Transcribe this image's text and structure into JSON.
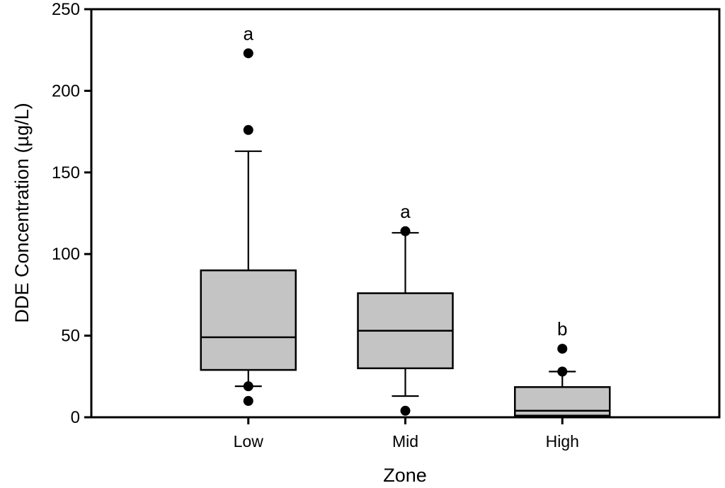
{
  "chart_data": {
    "type": "boxplot",
    "title": "",
    "xlabel": "Zone",
    "ylabel": "DDE Concentration (µg/L)",
    "ylim": [
      0,
      250
    ],
    "yticks": [
      0,
      50,
      100,
      150,
      200,
      250
    ],
    "categories": [
      "Low",
      "Mid",
      "High"
    ],
    "series": [
      {
        "category": "Low",
        "q1": 29,
        "median": 49,
        "q3": 90,
        "whisker_low": 19,
        "whisker_high": 163,
        "outliers": [
          223,
          176,
          19,
          10
        ],
        "sig_label": "a"
      },
      {
        "category": "Mid",
        "q1": 30,
        "median": 53,
        "q3": 76,
        "whisker_low": 13,
        "whisker_high": 113,
        "outliers": [
          114,
          4
        ],
        "sig_label": "a"
      },
      {
        "category": "High",
        "q1": 1,
        "median": 4,
        "q3": 18.5,
        "whisker_low": null,
        "whisker_high": 28,
        "outliers": [
          42,
          28
        ],
        "sig_label": "b"
      }
    ],
    "legend": null,
    "grid": false,
    "colors": {
      "box_fill": "#c4c4c4",
      "line_color": "#000000",
      "background": "#ffffff"
    }
  }
}
